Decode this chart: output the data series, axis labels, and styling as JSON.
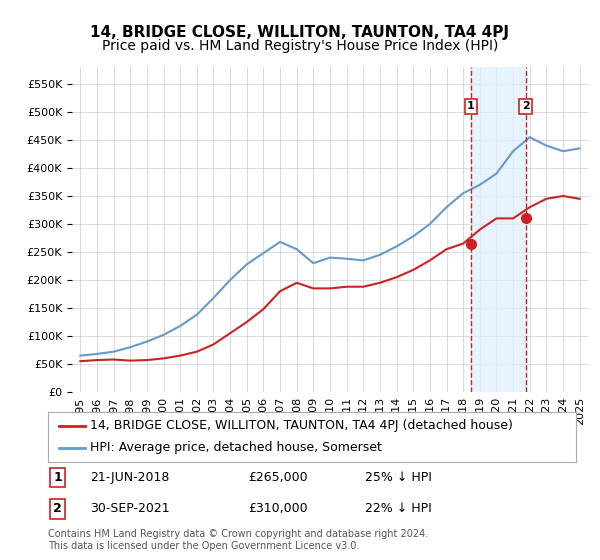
{
  "title": "14, BRIDGE CLOSE, WILLITON, TAUNTON, TA4 4PJ",
  "subtitle": "Price paid vs. HM Land Registry's House Price Index (HPI)",
  "background_color": "#ffffff",
  "plot_bg_color": "#ffffff",
  "grid_color": "#cccccc",
  "years": [
    1995,
    1996,
    1997,
    1998,
    1999,
    2000,
    2001,
    2002,
    2003,
    2004,
    2005,
    2006,
    2007,
    2008,
    2009,
    2010,
    2011,
    2012,
    2013,
    2014,
    2015,
    2016,
    2017,
    2018,
    2019,
    2020,
    2021,
    2022,
    2023,
    2024,
    2025
  ],
  "hpi_values": [
    65000,
    68000,
    72000,
    80000,
    90000,
    102000,
    118000,
    138000,
    168000,
    200000,
    228000,
    248000,
    268000,
    255000,
    230000,
    240000,
    238000,
    235000,
    245000,
    260000,
    278000,
    300000,
    330000,
    355000,
    370000,
    390000,
    430000,
    455000,
    440000,
    430000,
    435000
  ],
  "price_values_x": [
    1995.0,
    1996.0,
    1997.0,
    1998.0,
    1999.0,
    2000.0,
    2001.0,
    2002.0,
    2003.0,
    2004.0,
    2005.0,
    2006.0,
    2007.0,
    2008.0,
    2009.0,
    2010.0,
    2011.0,
    2012.0,
    2013.0,
    2014.0,
    2015.0,
    2016.0,
    2017.0,
    2018.0,
    2019.0,
    2020.0,
    2021.0,
    2022.0,
    2023.0,
    2024.0,
    2025.0
  ],
  "price_values_y": [
    55000,
    57000,
    58000,
    56000,
    57000,
    60000,
    65000,
    72000,
    85000,
    105000,
    125000,
    148000,
    180000,
    195000,
    185000,
    185000,
    188000,
    188000,
    195000,
    205000,
    218000,
    235000,
    255000,
    265000,
    290000,
    310000,
    310000,
    330000,
    345000,
    350000,
    345000
  ],
  "sale1_x": 2018.47,
  "sale1_y": 265000,
  "sale1_label": "1",
  "sale2_x": 2021.75,
  "sale2_y": 310000,
  "sale2_label": "2",
  "ylim": [
    0,
    580000
  ],
  "xlim": [
    1994.5,
    2025.5
  ],
  "yticks": [
    0,
    50000,
    100000,
    150000,
    200000,
    250000,
    300000,
    350000,
    400000,
    450000,
    500000,
    550000
  ],
  "xtick_years": [
    1995,
    1996,
    1997,
    1998,
    1999,
    2000,
    2001,
    2002,
    2003,
    2004,
    2005,
    2006,
    2007,
    2008,
    2009,
    2010,
    2011,
    2012,
    2013,
    2014,
    2015,
    2016,
    2017,
    2018,
    2019,
    2020,
    2021,
    2022,
    2023,
    2024,
    2025
  ],
  "hpi_color": "#6699cc",
  "price_color": "#cc2222",
  "sale_marker_color": "#cc2222",
  "vline_color": "#cc2222",
  "shade_color": "#ddeeff",
  "legend_label_price": "14, BRIDGE CLOSE, WILLITON, TAUNTON, TA4 4PJ (detached house)",
  "legend_label_hpi": "HPI: Average price, detached house, Somerset",
  "annotation1": "1    21-JUN-2018         £265,000        25% ↓ HPI",
  "annotation2": "2    30-SEP-2021         £310,000        22% ↓ HPI",
  "footer": "Contains HM Land Registry data © Crown copyright and database right 2024.\nThis data is licensed under the Open Government Licence v3.0.",
  "title_fontsize": 11,
  "subtitle_fontsize": 10,
  "tick_fontsize": 8,
  "legend_fontsize": 9,
  "annotation_fontsize": 9
}
